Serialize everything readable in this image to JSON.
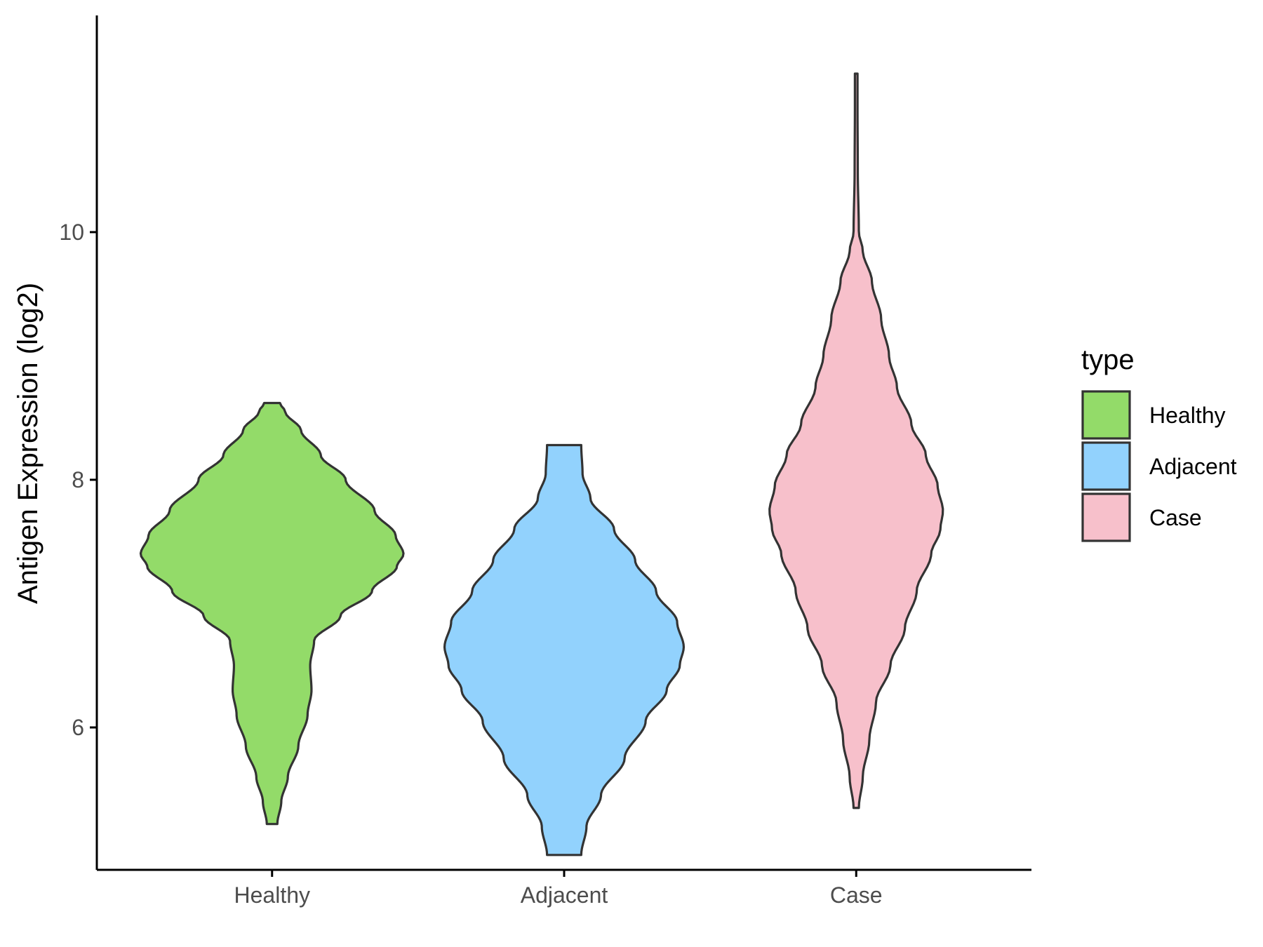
{
  "chart_data": {
    "type": "violin",
    "title": "",
    "xlabel": "",
    "ylabel": "Antigen Expression (log2)",
    "categories": [
      "Healthy",
      "Adjacent",
      "Case"
    ],
    "yticks": [
      6,
      8,
      10
    ],
    "ylim": [
      4.85,
      11.75
    ],
    "grid": false,
    "legend": {
      "title": "type",
      "position": "right",
      "items": [
        {
          "label": "Healthy",
          "color": "#93DB69"
        },
        {
          "label": "Adjacent",
          "color": "#92D2FD"
        },
        {
          "label": "Case",
          "color": "#F7C0CB"
        }
      ]
    },
    "series": [
      {
        "category": "Healthy",
        "color": "#93DB69",
        "min": 5.22,
        "max": 8.62,
        "density_profile": [
          [
            5.22,
            0.04
          ],
          [
            5.4,
            0.07
          ],
          [
            5.6,
            0.12
          ],
          [
            5.85,
            0.2
          ],
          [
            6.1,
            0.27
          ],
          [
            6.3,
            0.3
          ],
          [
            6.5,
            0.29
          ],
          [
            6.7,
            0.32
          ],
          [
            6.9,
            0.52
          ],
          [
            7.1,
            0.76
          ],
          [
            7.3,
            0.95
          ],
          [
            7.4,
            1.0
          ],
          [
            7.55,
            0.94
          ],
          [
            7.75,
            0.78
          ],
          [
            8.0,
            0.56
          ],
          [
            8.2,
            0.37
          ],
          [
            8.4,
            0.22
          ],
          [
            8.55,
            0.1
          ],
          [
            8.62,
            0.06
          ]
        ]
      },
      {
        "category": "Adjacent",
        "color": "#92D2FD",
        "min": 4.97,
        "max": 8.28,
        "density_profile": [
          [
            4.97,
            0.13
          ],
          [
            5.2,
            0.17
          ],
          [
            5.45,
            0.28
          ],
          [
            5.75,
            0.46
          ],
          [
            6.05,
            0.62
          ],
          [
            6.3,
            0.78
          ],
          [
            6.5,
            0.88
          ],
          [
            6.65,
            0.91
          ],
          [
            6.85,
            0.86
          ],
          [
            7.1,
            0.7
          ],
          [
            7.35,
            0.54
          ],
          [
            7.6,
            0.38
          ],
          [
            7.85,
            0.2
          ],
          [
            8.05,
            0.14
          ],
          [
            8.28,
            0.13
          ]
        ]
      },
      {
        "category": "Case",
        "color": "#F7C0CB",
        "min": 5.35,
        "max": 11.28,
        "density_profile": [
          [
            5.35,
            0.02
          ],
          [
            5.6,
            0.05
          ],
          [
            5.9,
            0.1
          ],
          [
            6.2,
            0.15
          ],
          [
            6.5,
            0.26
          ],
          [
            6.8,
            0.37
          ],
          [
            7.1,
            0.46
          ],
          [
            7.4,
            0.57
          ],
          [
            7.6,
            0.64
          ],
          [
            7.75,
            0.66
          ],
          [
            7.95,
            0.62
          ],
          [
            8.2,
            0.53
          ],
          [
            8.45,
            0.42
          ],
          [
            8.75,
            0.31
          ],
          [
            9.0,
            0.25
          ],
          [
            9.3,
            0.19
          ],
          [
            9.6,
            0.12
          ],
          [
            9.85,
            0.05
          ],
          [
            10.0,
            0.02
          ],
          [
            10.5,
            0.012
          ],
          [
            11.0,
            0.01
          ],
          [
            11.28,
            0.01
          ]
        ]
      }
    ]
  }
}
